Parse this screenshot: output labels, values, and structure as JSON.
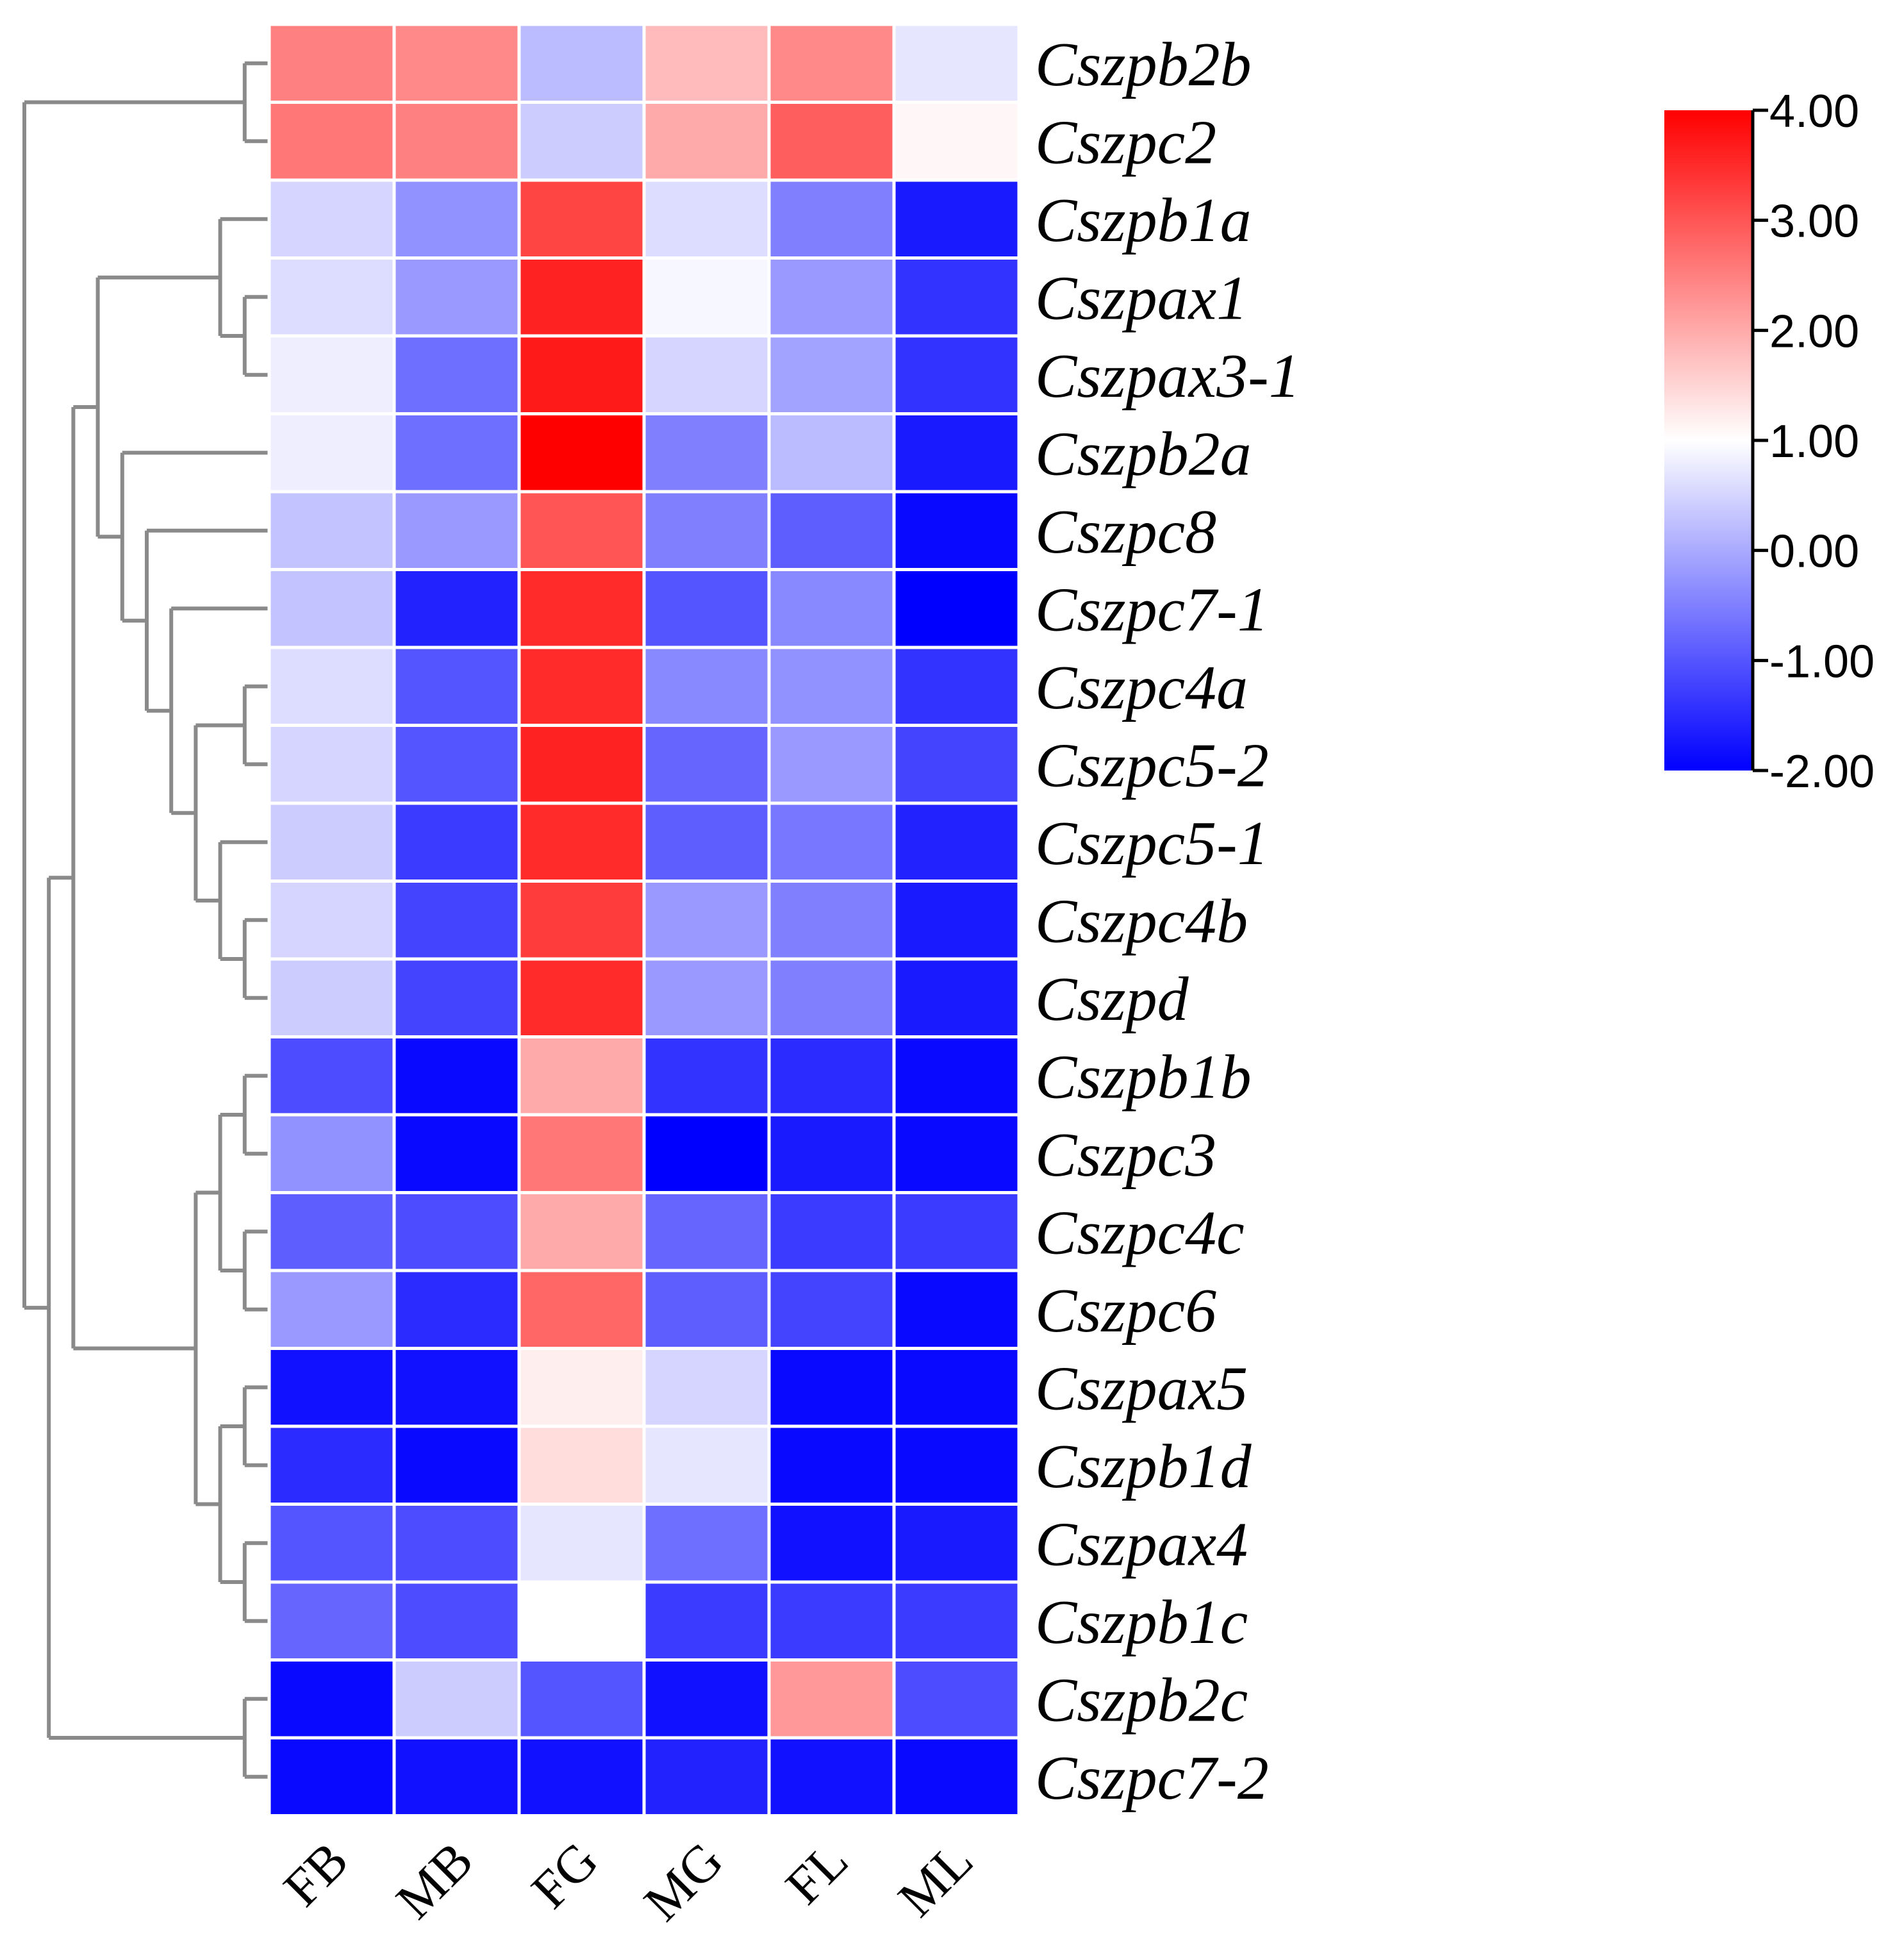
{
  "chart_data": {
    "type": "heatmap",
    "title": "",
    "xlabel": "",
    "ylabel": "",
    "columns": [
      "FB",
      "MB",
      "FG",
      "MG",
      "FL",
      "ML"
    ],
    "rows": [
      "Cszpb2b",
      "Cszpc2",
      "Cszpb1a",
      "Cszpax1",
      "Cszpax3-1",
      "Cszpb2a",
      "Cszpc8",
      "Cszpc7-1",
      "Cszpc4a",
      "Cszpc5-2",
      "Cszpc5-1",
      "Cszpc4b",
      "Cszpd",
      "Cszpb1b",
      "Cszpc3",
      "Cszpc4c",
      "Cszpc6",
      "Cszpax5",
      "Cszpb1d",
      "Cszpax4",
      "Cszpb1c",
      "Cszpb2c",
      "Cszpc7-2"
    ],
    "values": [
      [
        2.5,
        2.4,
        0.2,
        1.8,
        2.4,
        0.7
      ],
      [
        2.6,
        2.5,
        0.4,
        2.0,
        2.9,
        1.1
      ],
      [
        0.5,
        -0.3,
        3.2,
        0.6,
        -0.5,
        -1.7
      ],
      [
        0.6,
        -0.2,
        3.6,
        0.9,
        -0.2,
        -1.4
      ],
      [
        0.8,
        -0.7,
        3.7,
        0.5,
        -0.1,
        -1.4
      ],
      [
        0.8,
        -0.7,
        4.0,
        -0.5,
        0.2,
        -1.7
      ],
      [
        0.3,
        -0.2,
        3.0,
        -0.5,
        -0.9,
        -1.9
      ],
      [
        0.3,
        -1.6,
        3.5,
        -1.0,
        -0.4,
        -2.0
      ],
      [
        0.6,
        -1.0,
        3.5,
        -0.4,
        -0.3,
        -1.4
      ],
      [
        0.5,
        -1.0,
        3.6,
        -0.8,
        -0.2,
        -1.2
      ],
      [
        0.4,
        -1.3,
        3.5,
        -0.9,
        -0.6,
        -1.6
      ],
      [
        0.5,
        -1.2,
        3.3,
        -0.2,
        -0.5,
        -1.7
      ],
      [
        0.4,
        -1.2,
        3.5,
        -0.2,
        -0.5,
        -1.7
      ],
      [
        -1.1,
        -1.9,
        2.0,
        -1.4,
        -1.5,
        -1.9
      ],
      [
        -0.3,
        -1.9,
        2.6,
        -2.0,
        -1.7,
        -1.9
      ],
      [
        -0.9,
        -1.1,
        2.0,
        -0.8,
        -1.3,
        -1.3
      ],
      [
        -0.2,
        -1.5,
        2.8,
        -0.9,
        -1.2,
        -1.9
      ],
      [
        -1.8,
        -1.8,
        1.2,
        0.5,
        -1.9,
        -1.9
      ],
      [
        -1.5,
        -1.9,
        1.4,
        0.7,
        -1.9,
        -1.9
      ],
      [
        -1.0,
        -1.1,
        0.7,
        -0.7,
        -1.8,
        -1.7
      ],
      [
        -0.8,
        -1.1,
        1.0,
        -1.3,
        -1.3,
        -1.3
      ],
      [
        -1.9,
        0.4,
        -1.0,
        -1.8,
        2.2,
        -1.1
      ],
      [
        -1.9,
        -1.8,
        -1.8,
        -1.6,
        -1.8,
        -1.9
      ]
    ],
    "colorbar": {
      "ticks": [
        "4.00",
        "3.00",
        "2.00",
        "1.00",
        "0.00",
        "-1.00",
        "-2.00"
      ],
      "range": [
        -2,
        4
      ],
      "low_color": "#0000ff",
      "mid_value": 1,
      "mid_color": "#ffffff",
      "high_color": "#ff0000"
    },
    "row_dendrogram": {
      "children": [
        {
          "children": [
            {
              "leaf": "Cszpb2b"
            },
            {
              "leaf": "Cszpc2"
            }
          ]
        },
        {
          "children": [
            {
              "children": [
                {
                  "children": [
                    {
                      "children": [
                        {
                          "leaf": "Cszpb1a"
                        },
                        {
                          "children": [
                            {
                              "leaf": "Cszpax1"
                            },
                            {
                              "leaf": "Cszpax3-1"
                            }
                          ]
                        }
                      ]
                    },
                    {
                      "children": [
                        {
                          "leaf": "Cszpb2a"
                        },
                        {
                          "children": [
                            {
                              "leaf": "Cszpc8"
                            },
                            {
                              "children": [
                                {
                                  "leaf": "Cszpc7-1"
                                },
                                {
                                  "children": [
                                    {
                                      "children": [
                                        {
                                          "leaf": "Cszpc4a"
                                        },
                                        {
                                          "leaf": "Cszpc5-2"
                                        }
                                      ]
                                    },
                                    {
                                      "children": [
                                        {
                                          "leaf": "Cszpc5-1"
                                        },
                                        {
                                          "children": [
                                            {
                                              "leaf": "Cszpc4b"
                                            },
                                            {
                                              "leaf": "Cszpd"
                                            }
                                          ]
                                        }
                                      ]
                                    }
                                  ]
                                }
                              ]
                            }
                          ]
                        }
                      ]
                    }
                  ]
                },
                {
                  "children": [
                    {
                      "children": [
                        {
                          "children": [
                            {
                              "leaf": "Cszpb1b"
                            },
                            {
                              "leaf": "Cszpc3"
                            }
                          ]
                        },
                        {
                          "children": [
                            {
                              "leaf": "Cszpc4c"
                            },
                            {
                              "leaf": "Cszpc6"
                            }
                          ]
                        }
                      ]
                    },
                    {
                      "children": [
                        {
                          "children": [
                            {
                              "leaf": "Cszpax5"
                            },
                            {
                              "leaf": "Cszpb1d"
                            }
                          ]
                        },
                        {
                          "children": [
                            {
                              "leaf": "Cszpax4"
                            },
                            {
                              "leaf": "Cszpb1c"
                            }
                          ]
                        }
                      ]
                    }
                  ]
                }
              ]
            },
            {
              "children": [
                {
                  "leaf": "Cszpb2c"
                },
                {
                  "leaf": "Cszpc7-2"
                }
              ]
            }
          ]
        }
      ]
    }
  }
}
